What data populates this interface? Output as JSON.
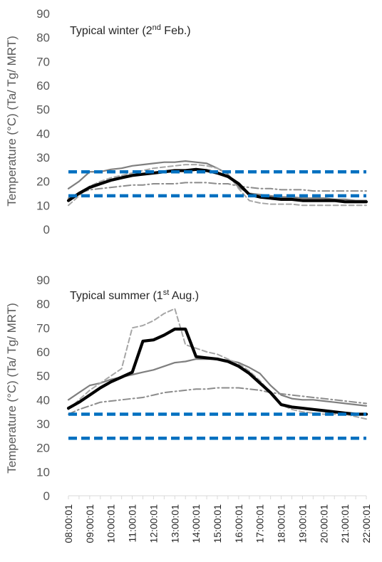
{
  "chart_data": [
    {
      "type": "line",
      "annotation": {
        "prefix": "Typical winter (2",
        "sup": "nd",
        "suffix": " Feb.)"
      },
      "ylabel": "Temperature (°C) (Ta/ Tg/ MRT)",
      "ylim": [
        0,
        90
      ],
      "yticks": [
        0,
        10,
        20,
        30,
        40,
        50,
        60,
        70,
        80,
        90
      ],
      "grid": false,
      "legend": "none",
      "x": [
        0,
        0.5,
        1,
        1.5,
        2,
        2.5,
        3,
        3.5,
        4,
        4.5,
        5,
        5.5,
        6,
        6.5,
        7,
        7.5,
        8,
        8.5,
        9,
        9.5,
        10,
        10.5,
        11,
        11.5,
        12,
        12.5,
        13,
        13.5,
        14
      ],
      "series": [
        {
          "style": "solid-gray",
          "color": "#7f7f7f",
          "values": [
            17,
            20,
            24,
            24,
            25,
            25.5,
            26.5,
            27,
            27.5,
            28,
            28,
            28.5,
            28,
            27.5,
            25.5,
            23,
            17.5,
            15,
            14.5,
            14,
            13.5,
            13.5,
            13,
            13,
            13,
            12.5,
            12.5,
            12,
            12
          ]
        },
        {
          "style": "dashed-gray",
          "color": "#a6a6a6",
          "values": [
            10,
            14,
            18,
            20,
            21.5,
            22.5,
            23.5,
            24.5,
            25.5,
            26,
            26.5,
            27,
            27,
            26.5,
            25.5,
            23,
            17,
            12,
            11,
            10.5,
            10.5,
            10.5,
            10,
            10,
            10,
            10,
            10,
            10,
            10
          ]
        },
        {
          "style": "dashdot-gray",
          "color": "#8c8c8c",
          "values": [
            13,
            15,
            16.5,
            17,
            17.5,
            18,
            18.5,
            18.5,
            19,
            19,
            19,
            19.5,
            19.5,
            19.5,
            19,
            19,
            18,
            17.5,
            17,
            17,
            16.5,
            16.5,
            16.5,
            16,
            16,
            16,
            16,
            16,
            16
          ]
        },
        {
          "style": "solid-black",
          "color": "#000000",
          "values": [
            12,
            15,
            17.5,
            19,
            20.5,
            21.5,
            22.5,
            23,
            23.5,
            24,
            24.5,
            24.5,
            25,
            24.5,
            23.5,
            22,
            19,
            14.5,
            13.5,
            13,
            12.5,
            12.5,
            12,
            12,
            12,
            12,
            11.5,
            11.5,
            11.5
          ]
        }
      ],
      "reference_lines": [
        {
          "value": 24,
          "color": "#0070c0"
        },
        {
          "value": 14,
          "color": "#0070c0"
        }
      ]
    },
    {
      "type": "line",
      "annotation": {
        "prefix": "Typical summer (1",
        "sup": "st",
        "suffix": " Aug.)"
      },
      "ylabel": "Temperature (°C) (Ta/ Tg/ MRT)",
      "ylim": [
        0,
        90
      ],
      "yticks": [
        0,
        10,
        20,
        30,
        40,
        50,
        60,
        70,
        80,
        90
      ],
      "grid": false,
      "legend": "none",
      "x": [
        0,
        0.5,
        1,
        1.5,
        2,
        2.5,
        3,
        3.5,
        4,
        4.5,
        5,
        5.5,
        6,
        6.5,
        7,
        7.5,
        8,
        8.5,
        9,
        9.5,
        10,
        10.5,
        11,
        11.5,
        12,
        12.5,
        13,
        13.5,
        14
      ],
      "series": [
        {
          "style": "solid-gray",
          "color": "#7f7f7f",
          "values": [
            40,
            43,
            46,
            47,
            48.5,
            49.5,
            50.5,
            51.5,
            52.5,
            54,
            55.5,
            56,
            57,
            57,
            57,
            56.5,
            55.5,
            53.5,
            51,
            46,
            42,
            40.5,
            40,
            40,
            39.5,
            39,
            38.5,
            38,
            37.5
          ]
        },
        {
          "style": "dashed-gray",
          "color": "#a6a6a6",
          "values": [
            36,
            40,
            44,
            47,
            50,
            53,
            70,
            71,
            73,
            76,
            78,
            63,
            61.5,
            60,
            59,
            57,
            55,
            52,
            48,
            43,
            38,
            36,
            35,
            34.5,
            34,
            34,
            34,
            33,
            32
          ]
        },
        {
          "style": "dashdot-gray",
          "color": "#8c8c8c",
          "values": [
            34,
            36,
            37.5,
            39,
            39.5,
            40,
            40.5,
            41,
            42,
            43,
            43.5,
            44,
            44.5,
            44.5,
            45,
            45,
            45,
            44.5,
            44,
            43,
            42.5,
            42,
            41.5,
            41,
            40.5,
            40,
            39.5,
            39,
            38.5
          ]
        },
        {
          "style": "solid-black",
          "color": "#000000",
          "values": [
            36.5,
            39,
            42,
            45,
            47.5,
            49.5,
            51.5,
            64.5,
            65,
            67,
            69.5,
            69.5,
            58,
            57.5,
            57,
            56,
            54,
            51,
            47,
            43,
            38,
            37,
            36.5,
            36,
            35.5,
            35,
            34.5,
            34,
            34
          ]
        }
      ],
      "reference_lines": [
        {
          "value": 34,
          "color": "#0070c0"
        },
        {
          "value": 24,
          "color": "#0070c0"
        }
      ]
    }
  ],
  "x_tick_labels": [
    "08:00:01",
    "09:00:01",
    "10:00:01",
    "11:00:01",
    "12:00:01",
    "13:00:01",
    "14:00:01",
    "15:00:01",
    "16:00:01",
    "17:00:01",
    "18:00:01",
    "19:00:01",
    "20:00:01",
    "21:00:01",
    "22:00:01"
  ]
}
